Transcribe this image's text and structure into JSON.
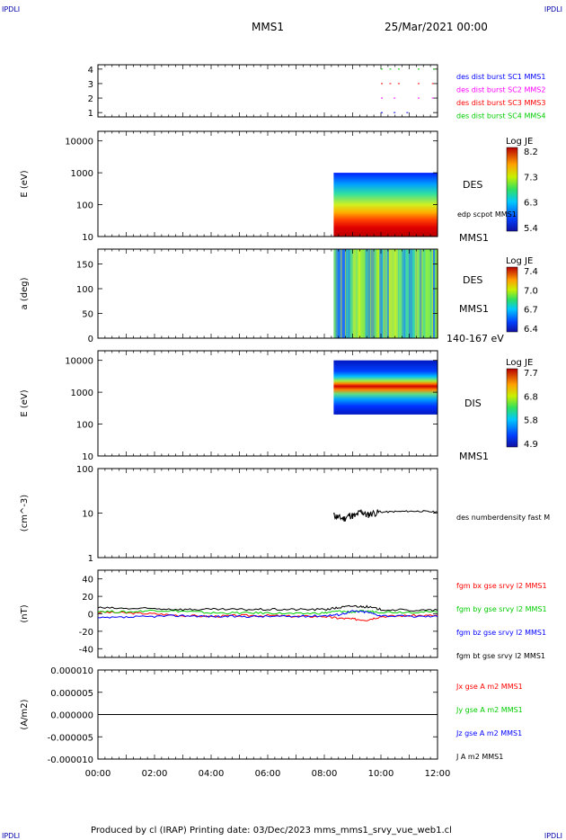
{
  "header": {
    "corner_left_top": "IPDLI",
    "corner_right_top": "IPDLI",
    "corner_left_bottom": "IPDLI",
    "corner_right_bottom": "IPDLI",
    "spacecraft": "MMS1",
    "datetime": "25/Mar/2021 00:00"
  },
  "footer": {
    "text": "Produced by cl (IRAP)   Printing date: 03/Dec/2023   mms_mms1_srvy_vue_web1.cl"
  },
  "colors": {
    "blue": "#0000ff",
    "magenta": "#ff00ff",
    "red": "#ff0000",
    "green": "#00cc00",
    "black": "#000000"
  },
  "chart_data": {
    "type": "line",
    "x_ticks": [
      "00:00",
      "02:00",
      "04:00",
      "06:00",
      "08:00",
      "10:00",
      "12:00"
    ],
    "x_range_hours": [
      0,
      12
    ],
    "data_start_hours": 8.33,
    "panels": [
      {
        "id": "burst",
        "type": "scatter",
        "y_ticks": [
          "4",
          "3",
          "2",
          "1"
        ],
        "ylim": [
          0.7,
          4.3
        ],
        "legend": [
          {
            "label": "des dist burst SC1 MMS1",
            "color": "blue"
          },
          {
            "label": "des dist burst SC2 MMS2",
            "color": "magenta"
          },
          {
            "label": "des dist burst SC3 MMS3",
            "color": "red"
          },
          {
            "label": "des dist burst SC4 MMS4",
            "color": "green"
          }
        ],
        "segments": [
          {
            "level": 1,
            "color": "blue",
            "x": [
              [
                10.0,
                10.15
              ],
              [
                10.45,
                10.6
              ],
              [
                10.9,
                11.05
              ]
            ]
          },
          {
            "level": 2,
            "color": "magenta",
            "x": [
              [
                10.0,
                10.15
              ],
              [
                10.45,
                10.6
              ],
              [
                11.3,
                11.45
              ],
              [
                11.8,
                11.95
              ]
            ]
          },
          {
            "level": 3,
            "color": "red",
            "x": [
              [
                10.0,
                10.15
              ],
              [
                10.3,
                10.45
              ],
              [
                10.6,
                10.75
              ],
              [
                11.3,
                11.45
              ],
              [
                11.8,
                11.95
              ]
            ]
          },
          {
            "level": 4,
            "color": "green",
            "x": [
              [
                10.0,
                10.1
              ],
              [
                10.3,
                10.4
              ],
              [
                10.6,
                10.7
              ],
              [
                11.3,
                11.4
              ],
              [
                11.85,
                11.95
              ]
            ]
          }
        ]
      },
      {
        "id": "des_energy",
        "type": "heatmap",
        "ylabel": "E (eV)",
        "y_ticks": [
          "10000",
          "1000",
          "100",
          "10"
        ],
        "log_scale": true,
        "ylim": [
          10,
          20000
        ],
        "x_range": [
          8.33,
          12
        ],
        "y_range": [
          10,
          1000
        ],
        "right_labels": [
          "DES",
          "edp scpot MMS1",
          "MMS1"
        ],
        "colorbar": {
          "title": "Log JE",
          "ticks": [
            "8.2",
            "7.3",
            "6.3",
            "5.4"
          ]
        }
      },
      {
        "id": "des_pitch",
        "type": "heatmap",
        "ylabel": "a (deg)",
        "y_ticks": [
          "150",
          "100",
          "50",
          "0"
        ],
        "ylim": [
          0,
          180
        ],
        "x_range": [
          8.33,
          12
        ],
        "right_labels": [
          "DES",
          "MMS1",
          "140-167 eV"
        ],
        "colorbar": {
          "title": "Log JE",
          "ticks": [
            "7.4",
            "7.0",
            "6.7",
            "6.4"
          ]
        }
      },
      {
        "id": "dis_energy",
        "type": "heatmap",
        "ylabel": "E (eV)",
        "y_ticks": [
          "10000",
          "1000",
          "100",
          "10"
        ],
        "log_scale": true,
        "ylim": [
          10,
          20000
        ],
        "x_range": [
          8.33,
          12
        ],
        "y_range": [
          200,
          10000
        ],
        "right_labels": [
          "DIS",
          "MMS1"
        ],
        "colorbar": {
          "title": "Log JE",
          "ticks": [
            "7.7",
            "6.8",
            "5.8",
            "4.9"
          ]
        }
      },
      {
        "id": "density",
        "type": "line",
        "ylabel": "(cm^-3)",
        "y_ticks": [
          "100",
          "10",
          "1"
        ],
        "log_scale": true,
        "ylim": [
          1,
          100
        ],
        "legend": [
          {
            "label": "des numberdensity fast M",
            "color": "black"
          }
        ],
        "series": [
          {
            "name": "des numberdensity fast M",
            "color": "black",
            "x": [
              8.33,
              8.5,
              8.7,
              8.9,
              9.1,
              9.3,
              9.5,
              9.7,
              10.0,
              10.5,
              11.0,
              11.5,
              12.0
            ],
            "y": [
              9,
              8,
              7.5,
              9,
              8.5,
              11,
              9,
              10,
              10.5,
              10.8,
              11,
              11,
              10.5
            ]
          }
        ]
      },
      {
        "id": "fgm",
        "type": "line",
        "ylabel": "(nT)",
        "y_ticks": [
          "40",
          "20",
          "0",
          "-20",
          "-40"
        ],
        "ylim": [
          -50,
          50
        ],
        "legend": [
          {
            "label": "fgm bx gse srvy l2 MMS1",
            "color": "red"
          },
          {
            "label": "fgm by gse srvy l2 MMS1",
            "color": "green"
          },
          {
            "label": "fgm bz gse srvy l2 MMS1",
            "color": "blue"
          },
          {
            "label": "fgm bt gse srvy l2 MMS1",
            "color": "black"
          }
        ],
        "series": [
          {
            "name": "fgm bx gse srvy l2 MMS1",
            "color": "red",
            "x": [
              0,
              1,
              2,
              3,
              4,
              5,
              6,
              7,
              8,
              8.5,
              9,
              9.5,
              10,
              11,
              12
            ],
            "y": [
              2,
              1,
              0,
              -2,
              -3,
              -2,
              -2,
              -3,
              -3,
              -5,
              -6,
              -7,
              -3,
              -2,
              -2
            ]
          },
          {
            "name": "fgm by gse srvy l2 MMS1",
            "color": "green",
            "x": [
              0,
              1,
              2,
              3,
              4,
              5,
              6,
              7,
              8,
              8.5,
              9,
              9.5,
              10,
              11,
              12
            ],
            "y": [
              3,
              2,
              4,
              3,
              1,
              1,
              1,
              0,
              1,
              3,
              2,
              3,
              2,
              2,
              2
            ]
          },
          {
            "name": "fgm bz gse srvy l2 MMS1",
            "color": "blue",
            "x": [
              0,
              1,
              2,
              3,
              4,
              5,
              6,
              7,
              8,
              8.5,
              9,
              9.5,
              10,
              11,
              12
            ],
            "y": [
              -5,
              -4,
              -3,
              -2,
              -3,
              -3,
              -3,
              -3,
              -2,
              -1,
              3,
              2,
              -2,
              -3,
              -3
            ]
          },
          {
            "name": "fgm bt gse srvy l2 MMS1",
            "color": "black",
            "x": [
              0,
              1,
              2,
              3,
              4,
              5,
              6,
              7,
              8,
              8.5,
              9,
              9.5,
              10,
              11,
              12
            ],
            "y": [
              7,
              6,
              6,
              5,
              5,
              5,
              5,
              5,
              5,
              7,
              9,
              8,
              5,
              4,
              4
            ]
          }
        ]
      },
      {
        "id": "current",
        "type": "line",
        "ylabel": "(A/m2)",
        "y_ticks": [
          "0.000010",
          "0.000005",
          "0.000000",
          "-0.000005",
          "-0.000010"
        ],
        "ylim": [
          -1e-05,
          1e-05
        ],
        "legend": [
          {
            "label": "Jx gse A m2 MMS1",
            "color": "red"
          },
          {
            "label": "Jy gse A m2 MMS1",
            "color": "green"
          },
          {
            "label": "Jz gse A m2 MMS1",
            "color": "blue"
          },
          {
            "label": "J A m2 MMS1",
            "color": "black"
          }
        ],
        "series": [
          {
            "name": "J A m2 MMS1",
            "color": "black",
            "x": [
              0,
              12
            ],
            "y": [
              0,
              0
            ]
          }
        ]
      }
    ]
  }
}
